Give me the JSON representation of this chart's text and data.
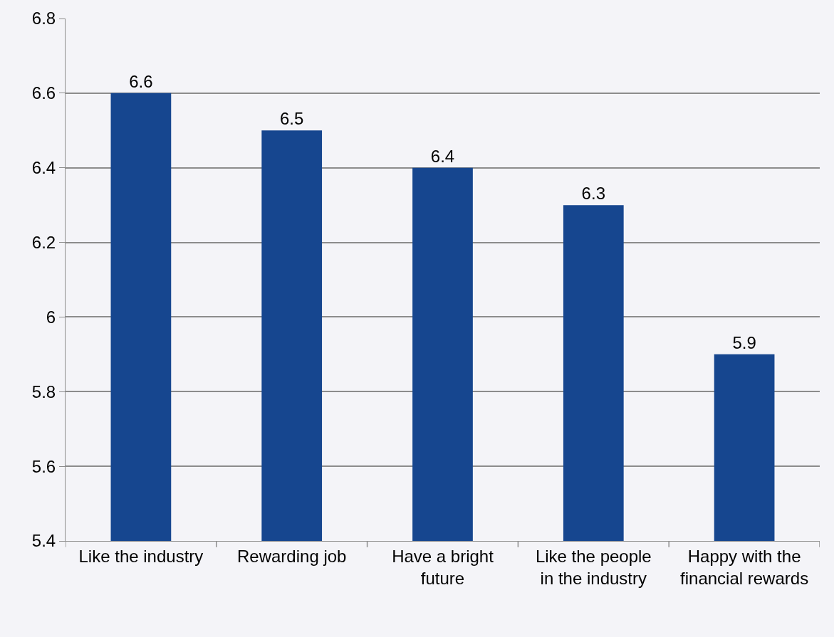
{
  "chart_data": {
    "type": "bar",
    "categories": [
      "Like the industry",
      "Rewarding job",
      "Have a bright future",
      "Like the people in the industry",
      "Happy with the financial rewards"
    ],
    "values": [
      6.6,
      6.5,
      6.4,
      6.3,
      5.9
    ],
    "color": "#16468f",
    "ylim": [
      5.4,
      6.8
    ],
    "yticks": [
      5.4,
      5.6,
      5.8,
      6,
      6.2,
      6.4,
      6.6,
      6.8
    ],
    "grid": "y",
    "data_labels": true
  }
}
